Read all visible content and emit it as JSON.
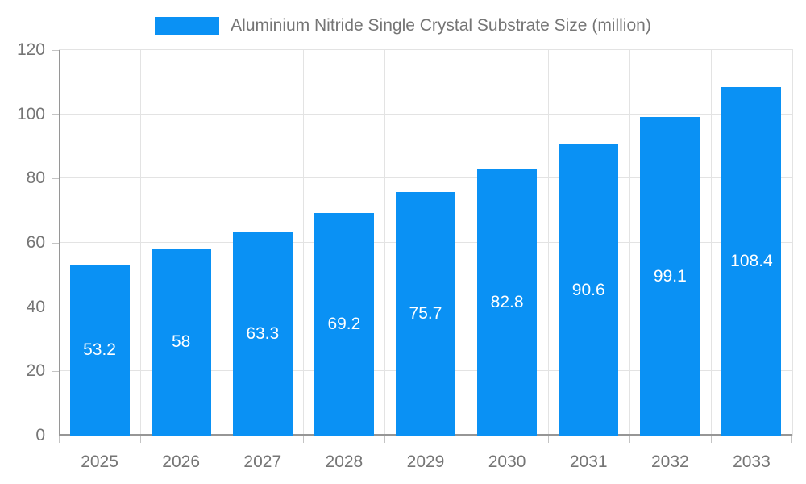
{
  "legend": {
    "label": "Aluminium Nitride Single Crystal Substrate Size (million)"
  },
  "chart_data": {
    "type": "bar",
    "title": "Aluminium Nitride Single Crystal Substrate Size (million)",
    "categories": [
      "2025",
      "2026",
      "2027",
      "2028",
      "2029",
      "2030",
      "2031",
      "2032",
      "2033"
    ],
    "values": [
      53.2,
      58,
      63.3,
      69.2,
      75.7,
      82.8,
      90.6,
      99.1,
      108.4
    ],
    "value_labels": [
      "53.2",
      "58",
      "63.3",
      "69.2",
      "75.7",
      "82.8",
      "90.6",
      "99.1",
      "108.4"
    ],
    "xlabel": "",
    "ylabel": "",
    "ylim": [
      0,
      120
    ],
    "yticks": [
      0,
      20,
      40,
      60,
      80,
      100,
      120
    ],
    "grid": true,
    "legend_position": "top-center",
    "value_label_position": "inside-center",
    "colors": {
      "bar": "#0a91f4",
      "value_label": "#ffffff",
      "axis_text": "#757575",
      "grid_line": "#e3e3e3",
      "axis_line": "#969696",
      "tick_mark": "#c4c4c4",
      "background": "#ffffff"
    }
  }
}
